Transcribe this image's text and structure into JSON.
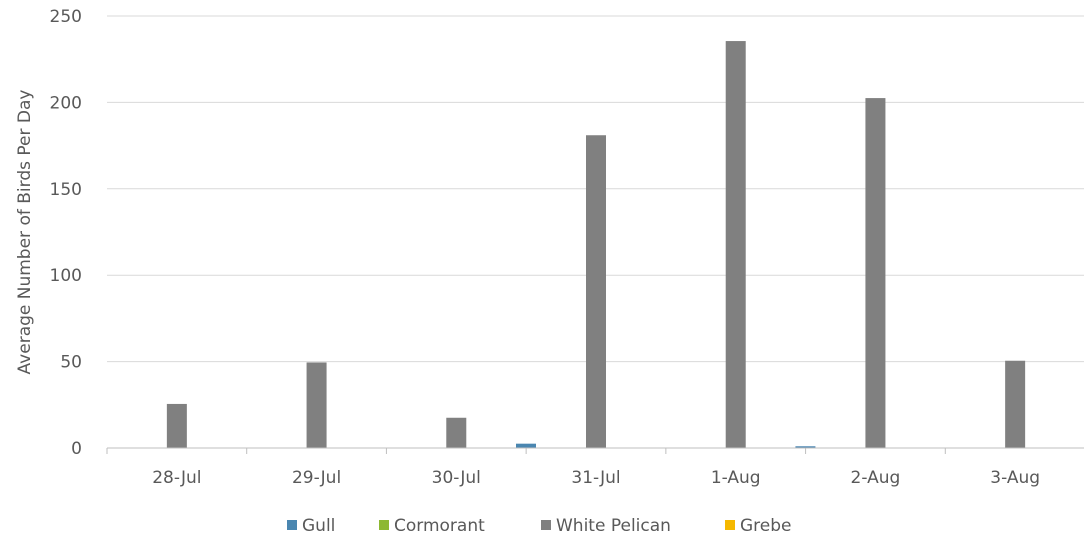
{
  "chart_data": {
    "type": "bar",
    "title": "",
    "xlabel": "",
    "ylabel": "Average Number of Birds Per Day",
    "ylim": [
      0,
      250
    ],
    "yticks": [
      0,
      50,
      100,
      150,
      200,
      250
    ],
    "grid": true,
    "legend": "bottom",
    "categories": [
      "28-Jul",
      "29-Jul",
      "30-Jul",
      "31-Jul",
      "1-Aug",
      "2-Aug",
      "3-Aug"
    ],
    "series": [
      {
        "name": "Gull",
        "color": "#4a86b0",
        "values": [
          0,
          0,
          0,
          2.5,
          0,
          1,
          0
        ]
      },
      {
        "name": "Cormorant",
        "color": "#8db832",
        "values": [
          0,
          0,
          0,
          0,
          0,
          0,
          0
        ]
      },
      {
        "name": "White Pelican",
        "color": "#808080",
        "values": [
          25.5,
          49.5,
          17.5,
          181,
          235.5,
          202.5,
          50.5
        ]
      },
      {
        "name": "Grebe",
        "color": "#f5b800",
        "values": [
          0,
          0,
          0,
          0,
          0,
          0,
          0
        ]
      }
    ]
  }
}
